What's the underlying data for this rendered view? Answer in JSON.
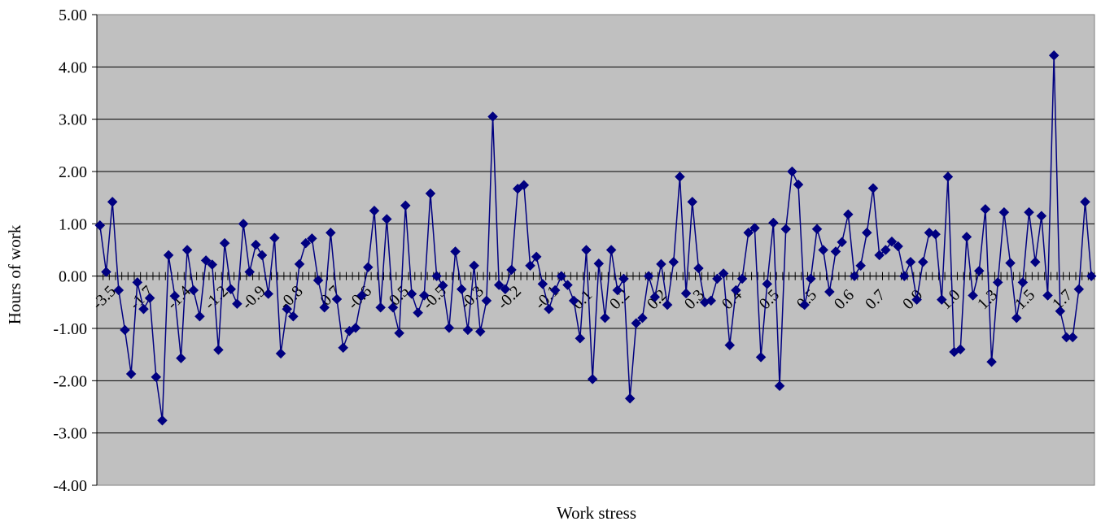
{
  "chart_data": {
    "type": "line",
    "title": "",
    "xlabel": "Work stress",
    "ylabel": "Hours of work",
    "ylim": [
      -4,
      5
    ],
    "y_ticks": [
      "-4.00",
      "-3.00",
      "-2.00",
      "-1.00",
      "0.00",
      "1.00",
      "2.00",
      "3.00",
      "4.00",
      "5.00"
    ],
    "x_tick_labels": [
      "-3.5",
      "-1.7",
      "-1.4",
      "-1.2",
      "-0.9",
      "-0.8",
      "-0.7",
      "-0.6",
      "-0.5",
      "-0.5",
      "-0.3",
      "-0.2",
      "-0.1",
      "0.1",
      "0.2",
      "0.2",
      "0.3",
      "0.4",
      "0.5",
      "0.5",
      "0.6",
      "0.7",
      "0.9",
      "1.0",
      "1.3",
      "1.5",
      "1.7"
    ],
    "grid": "horizontal",
    "legend": "none",
    "series": [
      {
        "color": "#000080",
        "values": [
          0.97,
          0.08,
          1.42,
          -0.27,
          -1.03,
          -1.87,
          -0.12,
          -0.63,
          -0.42,
          -1.93,
          -2.76,
          0.4,
          -0.38,
          -1.57,
          0.5,
          -0.27,
          -0.77,
          0.3,
          0.22,
          -1.41,
          0.63,
          -0.25,
          -0.53,
          1.0,
          0.08,
          0.6,
          0.4,
          -0.34,
          0.73,
          -1.48,
          -0.63,
          -0.77,
          0.23,
          0.63,
          0.72,
          -0.08,
          -0.6,
          0.83,
          -0.44,
          -1.37,
          -1.05,
          -0.99,
          -0.37,
          0.17,
          1.25,
          -0.6,
          1.09,
          -0.6,
          -1.09,
          1.35,
          -0.34,
          -0.7,
          -0.37,
          1.58,
          0.0,
          -0.18,
          -0.99,
          0.47,
          -0.25,
          -1.03,
          0.2,
          -1.06,
          -0.47,
          3.05,
          -0.17,
          -0.25,
          0.12,
          1.67,
          1.74,
          0.2,
          0.37,
          -0.15,
          -0.63,
          -0.27,
          0.0,
          -0.17,
          -0.47,
          -1.19,
          0.5,
          -1.97,
          0.24,
          -0.8,
          0.5,
          -0.27,
          -0.05,
          -2.34,
          -0.9,
          -0.8,
          0.0,
          -0.4,
          0.23,
          -0.55,
          0.27,
          1.9,
          -0.33,
          1.42,
          0.15,
          -0.5,
          -0.47,
          -0.05,
          0.05,
          -1.32,
          -0.27,
          -0.05,
          0.83,
          0.92,
          -1.55,
          -0.15,
          1.02,
          -2.1,
          0.9,
          2.0,
          1.75,
          -0.55,
          -0.05,
          0.9,
          0.5,
          -0.3,
          0.47,
          0.65,
          1.18,
          0.0,
          0.2,
          0.83,
          1.68,
          0.4,
          0.5,
          0.66,
          0.57,
          0.0,
          0.27,
          -0.45,
          0.27,
          0.83,
          0.8,
          -0.45,
          1.9,
          -1.45,
          -1.4,
          0.75,
          -0.37,
          0.1,
          1.28,
          -1.64,
          -0.12,
          1.22,
          0.25,
          -0.8,
          -0.12,
          1.22,
          0.27,
          1.15,
          -0.37,
          4.22,
          -0.67,
          -1.17,
          -1.17,
          -0.25,
          1.42,
          0.0
        ]
      }
    ]
  }
}
